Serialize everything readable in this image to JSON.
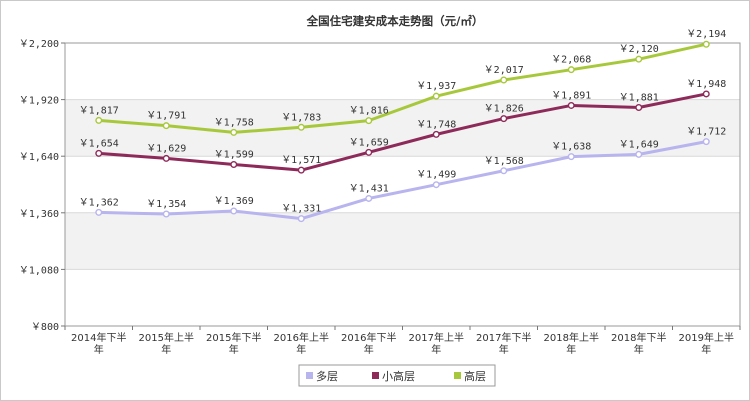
{
  "chart_data": {
    "type": "line",
    "title": "全国住宅建安成本走势图（元/㎡）",
    "categories": [
      "2014年下半年",
      "2015年上半年",
      "2015年下半年",
      "2016年上半年",
      "2016年下半年",
      "2017年上半年",
      "2017年下半年",
      "2018年上半年",
      "2018年下半年",
      "2019年上半年"
    ],
    "y_ticks": [
      "￥800",
      "￥1,080",
      "￥1,360",
      "￥1,640",
      "￥1,920",
      "￥2,200"
    ],
    "ylim": [
      800,
      2200
    ],
    "grid": "alternating horizontal bands",
    "legend_position": "bottom-center",
    "series": [
      {
        "name": "多层",
        "color": "#b8b4ee",
        "values": [
          1362,
          1354,
          1369,
          1331,
          1431,
          1499,
          1568,
          1638,
          1649,
          1712
        ],
        "labels": [
          "￥1,362",
          "￥1,354",
          "￥1,369",
          "￥1,331",
          "￥1,431",
          "￥1,499",
          "￥1,568",
          "￥1,638",
          "￥1,649",
          "￥1,712"
        ]
      },
      {
        "name": "小高层",
        "color": "#8e2a5a",
        "values": [
          1654,
          1629,
          1599,
          1571,
          1659,
          1748,
          1826,
          1891,
          1881,
          1948
        ],
        "labels": [
          "￥1,654",
          "￥1,629",
          "￥1,599",
          "￥1,571",
          "￥1,659",
          "￥1,748",
          "￥1,826",
          "￥1,891",
          "￥1,881",
          "￥1,948"
        ]
      },
      {
        "name": "高层",
        "color": "#a8c83c",
        "values": [
          1817,
          1791,
          1758,
          1783,
          1816,
          1937,
          2017,
          2068,
          2120,
          2194
        ],
        "labels": [
          "￥1,817",
          "￥1,791",
          "￥1,758",
          "￥1,783",
          "￥1,816",
          "￥1,937",
          "￥2,017",
          "￥2,068",
          "￥2,120",
          "￥2,194"
        ]
      }
    ]
  }
}
